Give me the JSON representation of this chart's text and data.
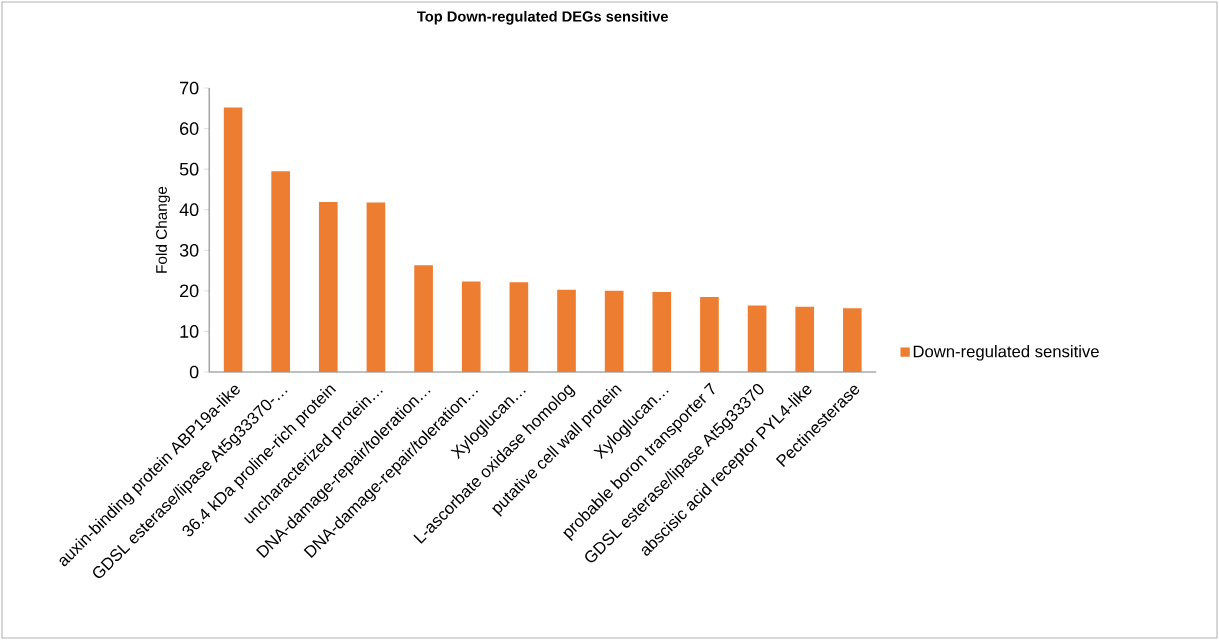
{
  "chart_data": {
    "type": "bar",
    "title": "Top Down-regulated DEGs sensitive",
    "ylabel": "Fold Change",
    "categories": [
      "auxin-binding protein ABP19a-like",
      "GDSL esterase/lipase At5g33370-…",
      "36.4 kDa proline-rich protein",
      "uncharacterized protein…",
      "DNA-damage-repair/toleration…",
      "DNA-damage-repair/toleration…",
      "Xyloglucan…",
      "L-ascorbate oxidase homolog",
      "putative cell wall protein",
      "Xyloglucan…",
      "probable boron transporter 7",
      "GDSL esterase/lipase At5g33370",
      "abscisic acid receptor PYL4-like",
      "Pectinesterase"
    ],
    "series": [
      {
        "name": "Down-regulated sensitive",
        "color": "#ed7d31",
        "values": [
          65.2,
          49.5,
          41.9,
          41.8,
          26.3,
          22.3,
          22.1,
          20.3,
          20.0,
          19.7,
          18.5,
          16.4,
          16.1,
          15.7
        ]
      }
    ],
    "ylim": [
      0,
      70
    ],
    "yticks": [
      0,
      10,
      20,
      30,
      40,
      50,
      60,
      70
    ],
    "legend": "right"
  }
}
